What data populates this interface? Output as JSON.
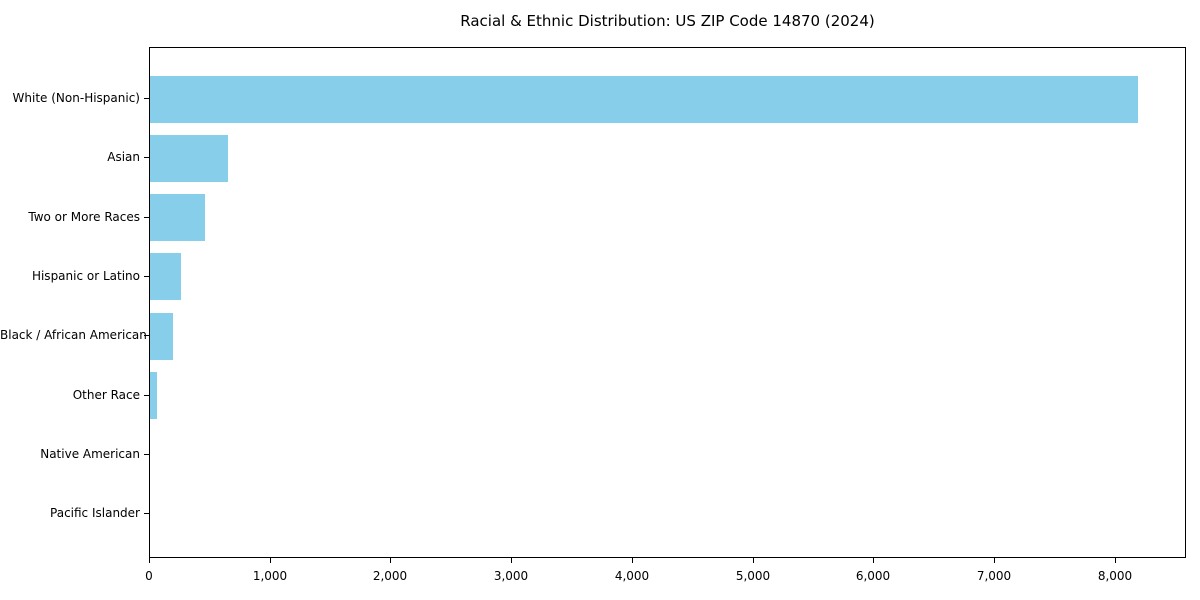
{
  "title": "Racial & Ethnic Distribution: US ZIP Code 14870 (2024)",
  "chart_data": {
    "type": "bar",
    "orientation": "horizontal",
    "title": "Racial & Ethnic Distribution: US ZIP Code 14870 (2024)",
    "xlabel": "",
    "ylabel": "",
    "categories": [
      "White (Non-Hispanic)",
      "Asian",
      "Two or More Races",
      "Hispanic or Latino",
      "Black / African American",
      "Other Race",
      "Native American",
      "Pacific Islander"
    ],
    "values": [
      8185,
      650,
      455,
      255,
      190,
      55,
      0,
      0
    ],
    "xlim": [
      0,
      8590
    ],
    "x_ticks": [
      0,
      1000,
      2000,
      3000,
      4000,
      5000,
      6000,
      7000,
      8000
    ],
    "x_tick_labels": [
      "0",
      "1,000",
      "2,000",
      "3,000",
      "4,000",
      "5,000",
      "6,000",
      "7,000",
      "8,000"
    ],
    "bar_color": "#87CEEB",
    "background_color": "#FFFFFF",
    "spine_color": "#000000",
    "text_color": "#000000",
    "grid": false,
    "legend": null
  }
}
